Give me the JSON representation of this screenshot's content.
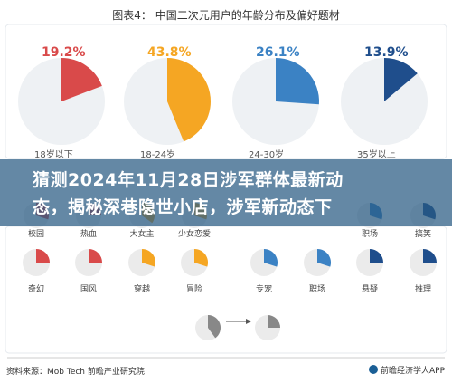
{
  "banner": {
    "line1": "猜测2024年11月28日涉军群体最新动",
    "line2": "态，揭秘深巷隐世小店，涉军新动态下"
  },
  "chart_data": {
    "type": "pie",
    "title": "图表4：   中国二次元用户的年龄分布及偏好题材",
    "age_groups": [
      {
        "label": "18岁以下",
        "value": 19.2,
        "display": "19.2%",
        "color": "#d94a4a"
      },
      {
        "label": "18-24岁",
        "value": 43.8,
        "display": "43.8%",
        "color": "#f5a623"
      },
      {
        "label": "24-30岁",
        "value": 26.1,
        "display": "26.1%",
        "color": "#3b82c4"
      },
      {
        "label": "35岁以上",
        "value": 13.9,
        "display": "13.9%",
        "color": "#1f4e8c"
      }
    ],
    "small_pies_row1_labels": [
      "校园",
      "热血",
      "大女主",
      "少女恋爱",
      "职场",
      "搞笑"
    ],
    "small_pies_row2_labels": [
      "奇幻",
      "国风",
      "穿越",
      "冒险",
      "专宠",
      "职场",
      "悬疑",
      "推理"
    ],
    "row2_colors": [
      "#d94a4a",
      "#d94a4a",
      "#f5a623",
      "#f5a623",
      "#3b82c4",
      "#3b82c4",
      "#1f4e8c",
      "#1f4e8c"
    ],
    "row2_values": [
      25,
      25,
      30,
      30,
      30,
      30,
      25,
      25
    ],
    "row1_colors": [
      "#d94a4a",
      "#d94a4a",
      "#f5a623",
      "#f5a623",
      "#3b82c4",
      "#1f4e8c"
    ],
    "row1_values": [
      30,
      25,
      35,
      30,
      30,
      30
    ],
    "legend_pies": [
      {
        "value": 40
      },
      {
        "value": 25
      }
    ],
    "legend_color": "#888888",
    "source": "资料来源：Mob Tech 前瞻产业研究院",
    "brand": "前瞻经济学人APP"
  }
}
